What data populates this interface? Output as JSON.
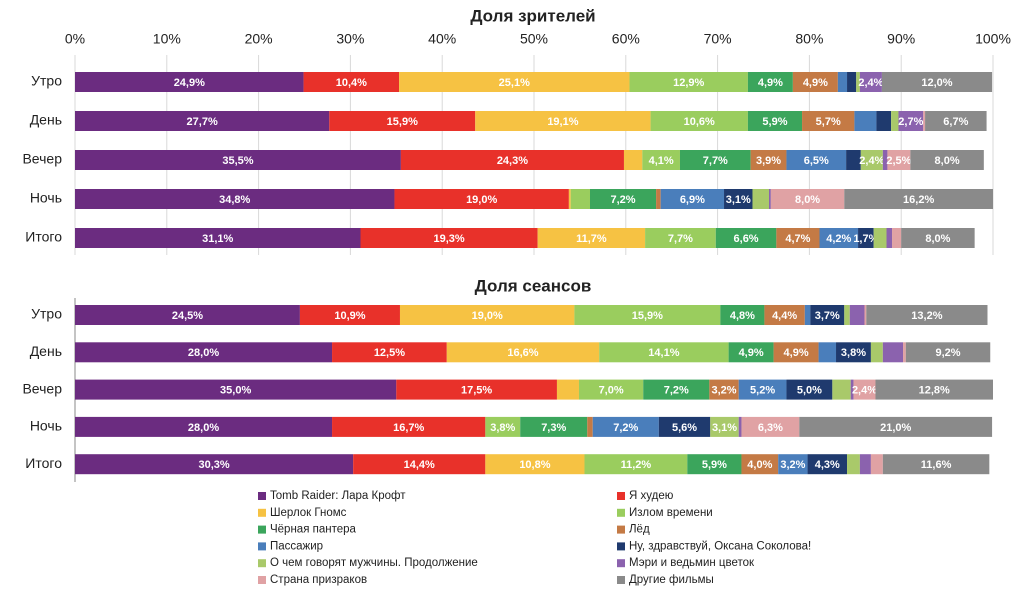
{
  "chart_data": [
    {
      "type": "stacked-bar-horizontal",
      "title": "Доля зрителей",
      "categories": [
        "Утро",
        "День",
        "Вечер",
        "Ночь",
        "Итого"
      ],
      "xlim": [
        0,
        100
      ],
      "xticks": [
        {
          "value": 0,
          "label": "0%"
        },
        {
          "value": 10,
          "label": "10%"
        },
        {
          "value": 20,
          "label": "20%"
        },
        {
          "value": 30,
          "label": "30%"
        },
        {
          "value": 40,
          "label": "40%"
        },
        {
          "value": 50,
          "label": "50%"
        },
        {
          "value": 60,
          "label": "60%"
        },
        {
          "value": 70,
          "label": "70%"
        },
        {
          "value": 80,
          "label": "80%"
        },
        {
          "value": 90,
          "label": "90%"
        },
        {
          "value": 100,
          "label": "100%"
        }
      ],
      "grid": true,
      "legend": "bottom",
      "series": [
        {
          "name": "Tomb Raider: Лара Крофт",
          "color": "#6B2C80",
          "values": [
            24.9,
            27.7,
            35.5,
            34.8,
            31.1
          ],
          "value_labels": [
            "24,9%",
            "27,7%",
            "35,5%",
            "34,8%",
            "31,1%"
          ]
        },
        {
          "name": "Я худею",
          "color": "#E8312A",
          "values": [
            10.4,
            15.9,
            24.3,
            19.0,
            19.3
          ],
          "value_labels": [
            "10,4%",
            "15,9%",
            "24,3%",
            "19,0%",
            "19,3%"
          ]
        },
        {
          "name": "Шерлок Гномс",
          "color": "#F6C243",
          "values": [
            25.1,
            19.1,
            2.0,
            0.2,
            11.7
          ],
          "value_labels": [
            "25,1%",
            "19,1%",
            null,
            null,
            "11,7%"
          ]
        },
        {
          "name": "Излом времени",
          "color": "#9ACD5E",
          "values": [
            12.9,
            10.6,
            4.1,
            2.1,
            7.7
          ],
          "value_labels": [
            "12,9%",
            "10,6%",
            "4,1%",
            null,
            "7,7%"
          ]
        },
        {
          "name": "Чёрная пантера",
          "color": "#3BA55C",
          "values": [
            4.9,
            5.9,
            7.7,
            7.2,
            6.6
          ],
          "value_labels": [
            "4,9%",
            "5,9%",
            "7,7%",
            "7,2%",
            "6,6%"
          ]
        },
        {
          "name": "Лёд",
          "color": "#C47A45",
          "values": [
            4.9,
            5.7,
            3.9,
            0.5,
            4.7
          ],
          "value_labels": [
            "4,9%",
            "5,7%",
            "3,9%",
            null,
            "4,7%"
          ]
        },
        {
          "name": "Пассажир",
          "color": "#4A7EBB",
          "values": [
            1.0,
            2.4,
            6.5,
            6.9,
            4.2
          ],
          "value_labels": [
            null,
            null,
            "6,5%",
            "6,9%",
            "4,2%"
          ]
        },
        {
          "name": "Ну, здравствуй, Оксана Соколова!",
          "color": "#1F3A6E",
          "values": [
            1.0,
            1.6,
            1.6,
            3.1,
            1.7
          ],
          "value_labels": [
            null,
            null,
            null,
            "3,1%",
            "1,7%"
          ]
        },
        {
          "name": "О чем говорят мужчины. Продолжение",
          "color": "#A9C96A",
          "values": [
            0.4,
            0.8,
            2.4,
            1.8,
            1.4
          ],
          "value_labels": [
            null,
            null,
            "2,4%",
            null,
            null
          ]
        },
        {
          "name": "Мэри и ведьмин цветок",
          "color": "#8B62AE",
          "values": [
            2.4,
            2.7,
            0.5,
            0.2,
            0.6
          ],
          "value_labels": [
            "2,4%",
            "2,7%",
            null,
            null,
            null
          ]
        },
        {
          "name": "Страна призраков",
          "color": "#E0A2A4",
          "values": [
            0,
            0.2,
            2.5,
            8.0,
            1.0
          ],
          "value_labels": [
            null,
            null,
            "2,5%",
            "8,0%",
            null
          ]
        },
        {
          "name": "Другие фильмы",
          "color": "#8A8A8A",
          "values": [
            12.0,
            6.7,
            8.0,
            16.2,
            8.0
          ],
          "value_labels": [
            "12,0%",
            "6,7%",
            "8,0%",
            "16,2%",
            "8,0%"
          ]
        }
      ]
    },
    {
      "type": "stacked-bar-horizontal",
      "title": "Доля сеансов",
      "categories": [
        "Утро",
        "День",
        "Вечер",
        "Ночь",
        "Итого"
      ],
      "xlim": [
        0,
        100
      ],
      "series": [
        {
          "color": "#6B2C80",
          "values": [
            24.5,
            28.0,
            35.0,
            28.0,
            30.3
          ],
          "value_labels": [
            "24,5%",
            "28,0%",
            "35,0%",
            "28,0%",
            "30,3%"
          ]
        },
        {
          "color": "#E8312A",
          "values": [
            10.9,
            12.5,
            17.5,
            16.7,
            14.4
          ],
          "value_labels": [
            "10,9%",
            "12,5%",
            "17,5%",
            "16,7%",
            "14,4%"
          ]
        },
        {
          "color": "#F6C243",
          "values": [
            19.0,
            16.6,
            2.4,
            0,
            10.8
          ],
          "value_labels": [
            "19,0%",
            "16,6%",
            null,
            null,
            "10,8%"
          ]
        },
        {
          "color": "#9ACD5E",
          "values": [
            15.9,
            14.1,
            7.0,
            3.8,
            11.2
          ],
          "value_labels": [
            "15,9%",
            "14,1%",
            "7,0%",
            "3,8%",
            "11,2%"
          ]
        },
        {
          "color": "#3BA55C",
          "values": [
            4.8,
            4.9,
            7.2,
            7.3,
            5.9
          ],
          "value_labels": [
            "4,8%",
            "4,9%",
            "7,2%",
            "7,3%",
            "5,9%"
          ]
        },
        {
          "color": "#C47A45",
          "values": [
            4.4,
            4.9,
            3.2,
            0.6,
            4.0
          ],
          "value_labels": [
            "4,4%",
            "4,9%",
            "3,2%",
            null,
            "4,0%"
          ]
        },
        {
          "color": "#4A7EBB",
          "values": [
            0.6,
            1.9,
            5.2,
            7.2,
            3.2
          ],
          "value_labels": [
            null,
            null,
            "5,2%",
            "7,2%",
            "3,2%"
          ]
        },
        {
          "color": "#1F3A6E",
          "values": [
            3.7,
            3.8,
            5.0,
            5.6,
            4.3
          ],
          "value_labels": [
            "3,7%",
            "3,8%",
            "5,0%",
            "5,6%",
            "4,3%"
          ]
        },
        {
          "color": "#A9C96A",
          "values": [
            0.6,
            1.3,
            2.0,
            3.1,
            1.4
          ],
          "value_labels": [
            null,
            null,
            null,
            "3,1%",
            null
          ]
        },
        {
          "color": "#8B62AE",
          "values": [
            1.6,
            2.2,
            0.3,
            0.3,
            1.2
          ],
          "value_labels": [
            null,
            null,
            null,
            null,
            null
          ]
        },
        {
          "color": "#E0A2A4",
          "values": [
            0.2,
            0.3,
            2.4,
            6.3,
            1.3
          ],
          "value_labels": [
            null,
            null,
            "2,4%",
            "6,3%",
            null
          ]
        },
        {
          "color": "#8A8A8A",
          "values": [
            13.2,
            9.2,
            12.8,
            21.0,
            11.6
          ],
          "value_labels": [
            "13,2%",
            "9,2%",
            "12,8%",
            "21,0%",
            "11,6%"
          ]
        }
      ]
    }
  ]
}
